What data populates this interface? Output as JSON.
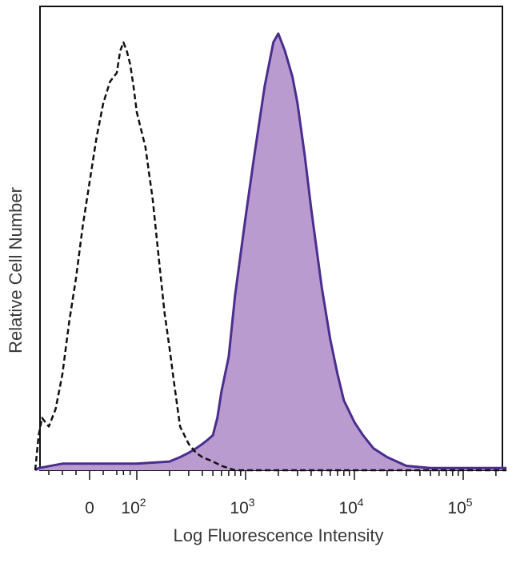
{
  "chart_data": {
    "type": "area",
    "title": "",
    "xlabel": "Log Fluorescence Intensity",
    "ylabel": "Relative Cell Number",
    "x_scale": "biexponential",
    "xlim": [
      -80,
      250000
    ],
    "ylim": [
      0,
      100
    ],
    "grid": false,
    "legend": "none",
    "x_ticks": [
      {
        "value": 0,
        "base": "0",
        "exp": ""
      },
      {
        "value": 100,
        "base": "10",
        "exp": "2"
      },
      {
        "value": 1000,
        "base": "10",
        "exp": "3"
      },
      {
        "value": 10000,
        "base": "10",
        "exp": "4"
      },
      {
        "value": 100000,
        "base": "10",
        "exp": "5"
      }
    ],
    "series": [
      {
        "style": "dashed-outline",
        "color": "#111111",
        "points": [
          [
            -80,
            0
          ],
          [
            -75,
            8
          ],
          [
            -70,
            12
          ],
          [
            -60,
            10
          ],
          [
            -50,
            14
          ],
          [
            -40,
            22
          ],
          [
            -30,
            34
          ],
          [
            -20,
            44
          ],
          [
            -10,
            56
          ],
          [
            0,
            66
          ],
          [
            10,
            76
          ],
          [
            20,
            84
          ],
          [
            30,
            89
          ],
          [
            40,
            91
          ],
          [
            50,
            96
          ],
          [
            60,
            98
          ],
          [
            70,
            96
          ],
          [
            80,
            93
          ],
          [
            90,
            88
          ],
          [
            100,
            82
          ],
          [
            120,
            74
          ],
          [
            140,
            62
          ],
          [
            160,
            48
          ],
          [
            180,
            36
          ],
          [
            200,
            28
          ],
          [
            220,
            20
          ],
          [
            250,
            10
          ],
          [
            300,
            6
          ],
          [
            350,
            4
          ],
          [
            400,
            3
          ],
          [
            500,
            2
          ],
          [
            600,
            1
          ],
          [
            800,
            0
          ],
          [
            2000,
            0
          ],
          [
            250000,
            0
          ]
        ]
      },
      {
        "style": "filled",
        "color": "#4a2e8e",
        "fill": "#b99bd0",
        "points": [
          [
            -80,
            0
          ],
          [
            -75,
            0.5
          ],
          [
            -40,
            1.5
          ],
          [
            0,
            1.5
          ],
          [
            100,
            1.5
          ],
          [
            200,
            2
          ],
          [
            250,
            3
          ],
          [
            300,
            4
          ],
          [
            350,
            5
          ],
          [
            400,
            6
          ],
          [
            450,
            7
          ],
          [
            500,
            8
          ],
          [
            550,
            12
          ],
          [
            600,
            18
          ],
          [
            700,
            26
          ],
          [
            800,
            40
          ],
          [
            1000,
            58
          ],
          [
            1200,
            72
          ],
          [
            1500,
            88
          ],
          [
            1800,
            98
          ],
          [
            2000,
            100
          ],
          [
            2300,
            96
          ],
          [
            2700,
            90
          ],
          [
            3000,
            84
          ],
          [
            3500,
            72
          ],
          [
            4000,
            60
          ],
          [
            5000,
            42
          ],
          [
            6000,
            30
          ],
          [
            7000,
            22
          ],
          [
            8000,
            16
          ],
          [
            10000,
            11
          ],
          [
            12000,
            8
          ],
          [
            15000,
            5
          ],
          [
            20000,
            3
          ],
          [
            30000,
            1
          ],
          [
            50000,
            0.5
          ],
          [
            100000,
            0.5
          ],
          [
            250000,
            0.5
          ]
        ]
      }
    ]
  }
}
